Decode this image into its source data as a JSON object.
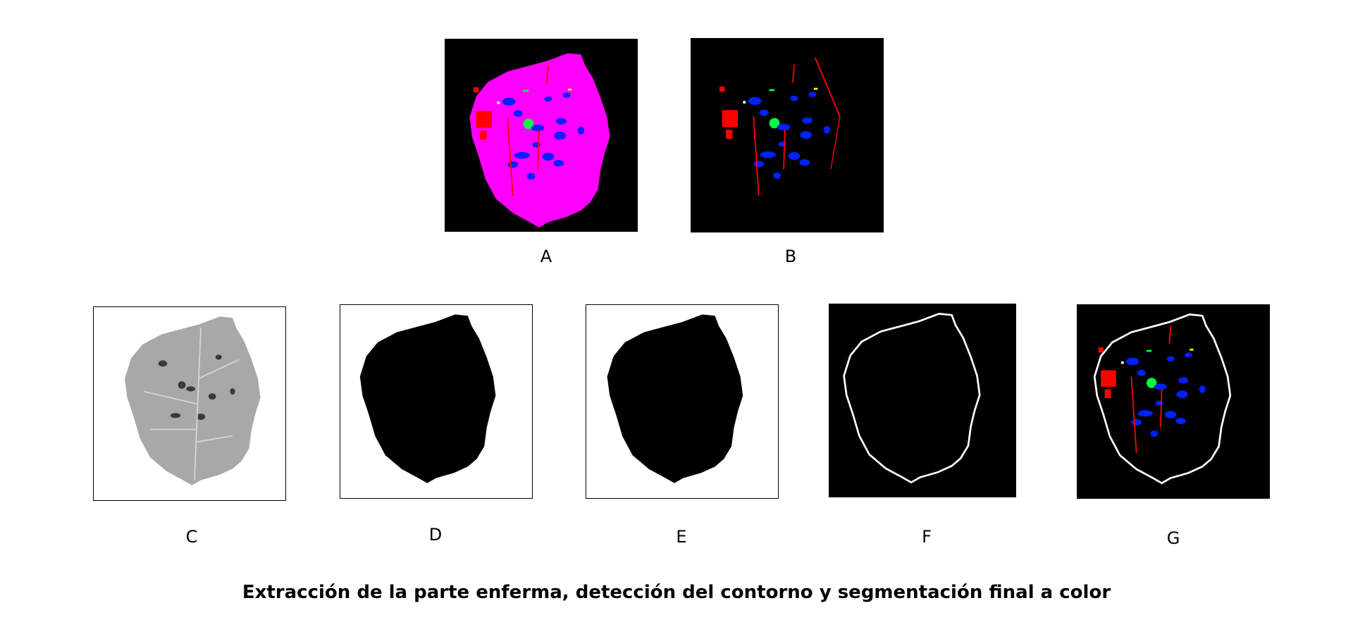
{
  "panels": {
    "A": {
      "label": "A"
    },
    "B": {
      "label": "B"
    },
    "C": {
      "label": "C"
    },
    "D": {
      "label": "D"
    },
    "E": {
      "label": "E"
    },
    "F": {
      "label": "F"
    },
    "G": {
      "label": "G"
    }
  },
  "caption": "Extracción de la parte enferma, detección del contorno y segmentación final a color",
  "colors": {
    "background_black": "#000000",
    "leaf_magenta": "#ff00ff",
    "lesion_blue": "#0020ff",
    "lesion_red": "#ff0000",
    "lesion_green": "#00ff40",
    "contour_white": "#ffffff",
    "leaf_gray": "#a8a8a8"
  }
}
